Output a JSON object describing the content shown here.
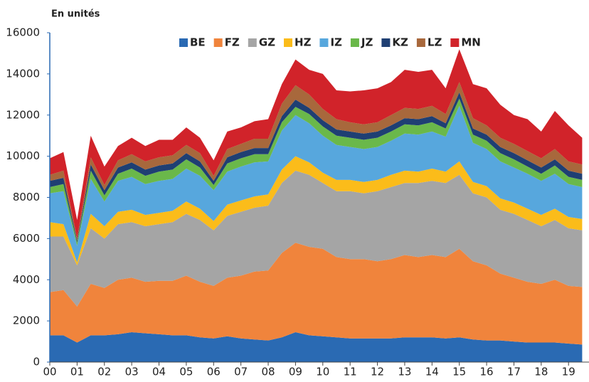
{
  "chart_data": {
    "type": "area",
    "stacked": true,
    "y_label": "En unités",
    "x": [
      0,
      0.5,
      1,
      1.5,
      2,
      2.5,
      3,
      3.5,
      4,
      4.5,
      5,
      5.5,
      6,
      6.5,
      7,
      7.5,
      8,
      8.5,
      9,
      9.5,
      10,
      10.5,
      11,
      11.5,
      12,
      12.5,
      13,
      13.5,
      14,
      14.5,
      15,
      15.5,
      16,
      16.5,
      17,
      17.5,
      18,
      18.5,
      19,
      19.5
    ],
    "xlim": [
      0,
      19.75
    ],
    "xticks": [
      {
        "value": 0,
        "label": "00"
      },
      {
        "value": 1,
        "label": "01"
      },
      {
        "value": 2,
        "label": "02"
      },
      {
        "value": 3,
        "label": "03"
      },
      {
        "value": 4,
        "label": "04"
      },
      {
        "value": 5,
        "label": "05"
      },
      {
        "value": 6,
        "label": "06"
      },
      {
        "value": 7,
        "label": "07"
      },
      {
        "value": 8,
        "label": "08"
      },
      {
        "value": 9,
        "label": "09"
      },
      {
        "value": 10,
        "label": "10"
      },
      {
        "value": 11,
        "label": "11"
      },
      {
        "value": 12,
        "label": "12"
      },
      {
        "value": 13,
        "label": "13"
      },
      {
        "value": 14,
        "label": "14"
      },
      {
        "value": 15,
        "label": "15"
      },
      {
        "value": 16,
        "label": "16"
      },
      {
        "value": 17,
        "label": "17"
      },
      {
        "value": 18,
        "label": "18"
      },
      {
        "value": 19,
        "label": "19"
      }
    ],
    "ylim": [
      0,
      16000
    ],
    "yticks": [
      0,
      2000,
      4000,
      6000,
      8000,
      10000,
      12000,
      14000,
      16000
    ],
    "grid": false,
    "legend": "top",
    "series": [
      {
        "name": "BE",
        "color": "#2a6ab3",
        "values": [
          1300,
          1300,
          950,
          1300,
          1300,
          1350,
          1450,
          1400,
          1350,
          1300,
          1300,
          1200,
          1150,
          1250,
          1150,
          1100,
          1050,
          1200,
          1450,
          1300,
          1250,
          1200,
          1150,
          1150,
          1150,
          1150,
          1200,
          1200,
          1200,
          1150,
          1200,
          1100,
          1050,
          1050,
          1000,
          950,
          950,
          950,
          900,
          850
        ]
      },
      {
        "name": "FZ",
        "color": "#f0843c",
        "values": [
          2100,
          2200,
          1750,
          2500,
          2300,
          2650,
          2650,
          2500,
          2600,
          2650,
          2900,
          2700,
          2550,
          2850,
          3050,
          3300,
          3400,
          4100,
          4350,
          4300,
          4250,
          3900,
          3850,
          3850,
          3750,
          3850,
          4000,
          3900,
          4000,
          3950,
          4300,
          3800,
          3650,
          3250,
          3100,
          2950,
          2850,
          3050,
          2800,
          2800
        ]
      },
      {
        "name": "GZ",
        "color": "#a5a5a5",
        "values": [
          2700,
          2600,
          2000,
          2700,
          2400,
          2700,
          2700,
          2700,
          2750,
          2850,
          3000,
          3000,
          2700,
          3000,
          3100,
          3100,
          3150,
          3400,
          3500,
          3500,
          3200,
          3200,
          3300,
          3200,
          3400,
          3500,
          3500,
          3600,
          3600,
          3600,
          3600,
          3300,
          3300,
          3100,
          3100,
          3000,
          2800,
          2900,
          2800,
          2750
        ]
      },
      {
        "name": "HZ",
        "color": "#fbbc1a",
        "values": [
          700,
          600,
          150,
          700,
          600,
          600,
          600,
          550,
          550,
          550,
          600,
          550,
          450,
          550,
          550,
          550,
          550,
          650,
          700,
          600,
          500,
          550,
          550,
          550,
          550,
          600,
          600,
          550,
          600,
          550,
          650,
          550,
          550,
          550,
          550,
          550,
          550,
          550,
          550,
          550
        ]
      },
      {
        "name": "IZ",
        "color": "#57a7dd",
        "values": [
          1400,
          1600,
          800,
          1700,
          1200,
          1500,
          1600,
          1500,
          1550,
          1550,
          1600,
          1600,
          1500,
          1600,
          1650,
          1650,
          1600,
          1900,
          2000,
          1900,
          1800,
          1700,
          1600,
          1600,
          1600,
          1650,
          1800,
          1800,
          1800,
          1700,
          2700,
          1900,
          1800,
          1800,
          1700,
          1700,
          1650,
          1700,
          1600,
          1550
        ]
      },
      {
        "name": "JZ",
        "color": "#6ab84a",
        "values": [
          300,
          350,
          150,
          400,
          300,
          350,
          400,
          400,
          450,
          450,
          450,
          400,
          250,
          400,
          400,
          400,
          350,
          400,
          400,
          450,
          450,
          450,
          450,
          450,
          450,
          450,
          450,
          450,
          450,
          400,
          350,
          400,
          400,
          400,
          400,
          350,
          350,
          400,
          350,
          350
        ]
      },
      {
        "name": "KZ",
        "color": "#1f3f73",
        "values": [
          300,
          300,
          100,
          300,
          250,
          300,
          300,
          300,
          300,
          300,
          300,
          300,
          200,
          300,
          300,
          300,
          300,
          300,
          350,
          300,
          300,
          300,
          300,
          300,
          300,
          300,
          300,
          300,
          300,
          250,
          300,
          300,
          300,
          300,
          300,
          300,
          300,
          300,
          300,
          300
        ]
      },
      {
        "name": "LZ",
        "color": "#a8683c",
        "values": [
          300,
          350,
          100,
          350,
          250,
          350,
          400,
          400,
          400,
          400,
          400,
          400,
          250,
          400,
          400,
          450,
          450,
          600,
          700,
          650,
          550,
          500,
          450,
          450,
          450,
          500,
          500,
          500,
          500,
          450,
          500,
          500,
          450,
          450,
          450,
          450,
          450,
          500,
          450,
          450
        ]
      },
      {
        "name": "MN",
        "color": "#d1232a",
        "values": [
          800,
          900,
          900,
          1050,
          900,
          700,
          800,
          750,
          850,
          750,
          850,
          750,
          750,
          850,
          800,
          850,
          950,
          950,
          1250,
          1200,
          1700,
          1400,
          1500,
          1650,
          1650,
          1600,
          1850,
          1800,
          1750,
          1250,
          1600,
          1650,
          1800,
          1600,
          1400,
          1550,
          1300,
          1850,
          1750,
          1300
        ]
      }
    ]
  }
}
